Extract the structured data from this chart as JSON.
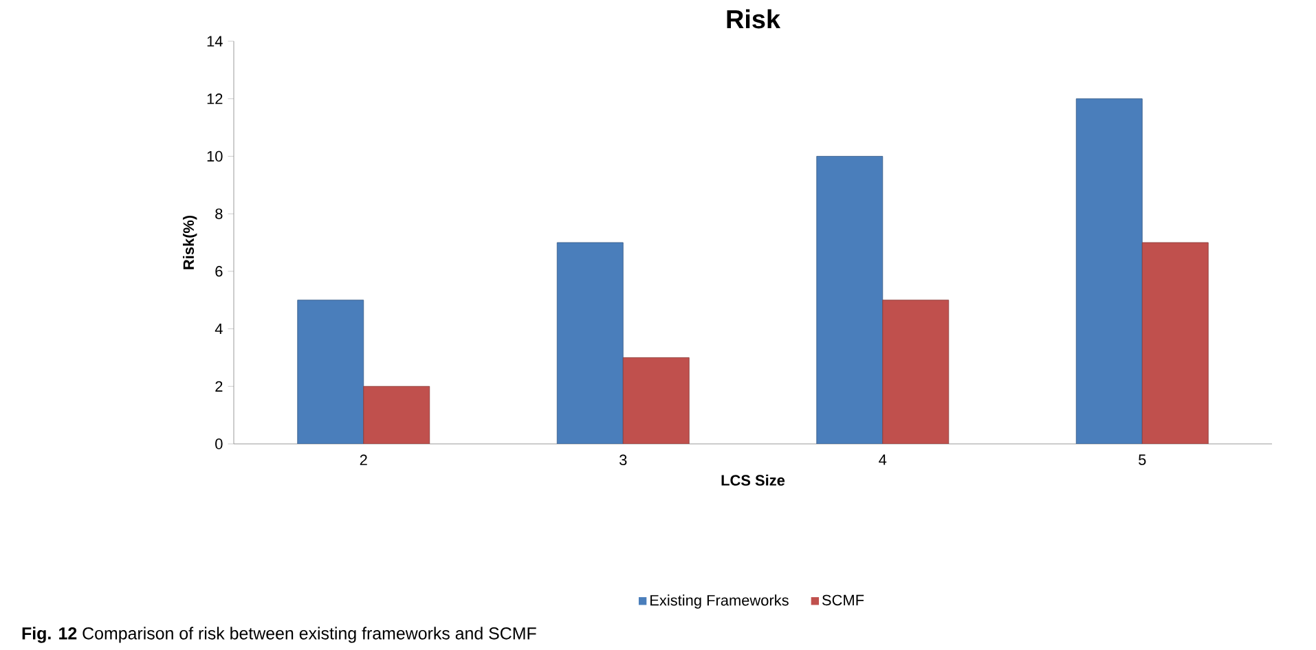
{
  "chart_data": {
    "type": "bar",
    "title": "Risk",
    "xlabel": "LCS Size",
    "ylabel": "Risk(%)",
    "categories": [
      "2",
      "3",
      "4",
      "5"
    ],
    "series": [
      {
        "name": "Existing Frameworks",
        "color": "#4a7ebb",
        "values": [
          5,
          7,
          10,
          12
        ]
      },
      {
        "name": "SCMF",
        "color": "#c0504d",
        "values": [
          2,
          3,
          5,
          7
        ]
      }
    ],
    "ylim": [
      0,
      14
    ],
    "yticks": [
      0,
      2,
      4,
      6,
      8,
      10,
      12,
      14
    ],
    "legend": "bottom",
    "annotations": [
      "**Fig. 12** Comparison of risk between existing frameworks and SCMF"
    ]
  }
}
